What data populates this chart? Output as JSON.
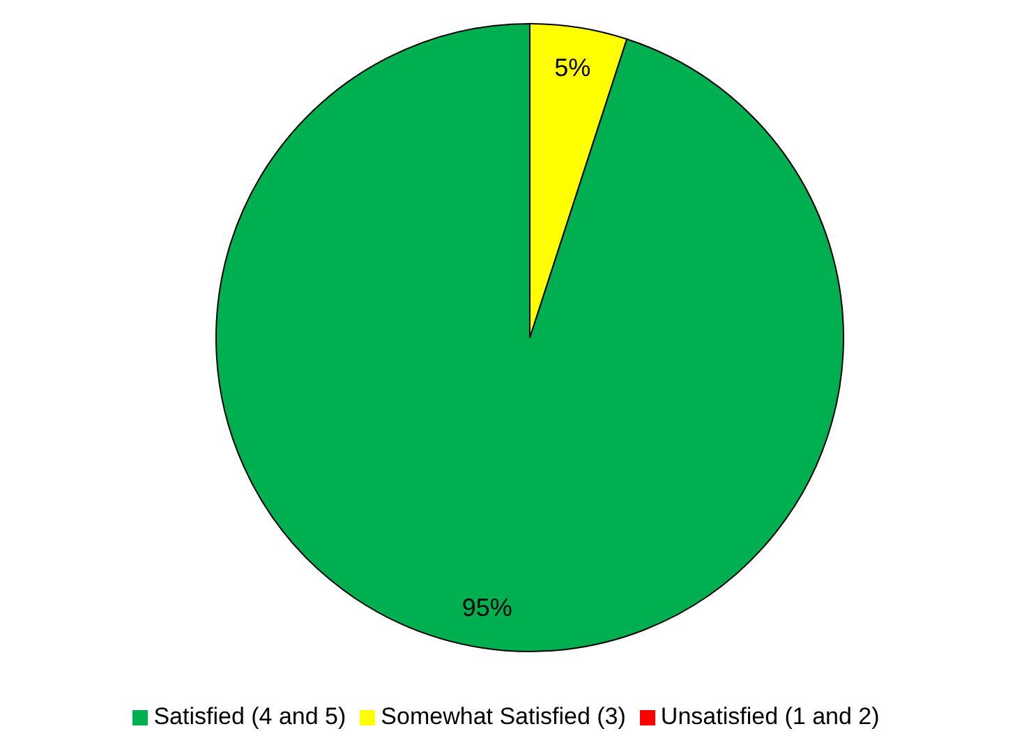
{
  "chart_data": {
    "type": "pie",
    "categories": [
      "Satisfied (4 and 5)",
      "Somewhat Satisfied (3)",
      "Unsatisfied (1 and 2)"
    ],
    "values": [
      95,
      5,
      0
    ],
    "colors": [
      "#00b050",
      "#ffff00",
      "#ff0000"
    ],
    "value_labels": [
      "95%",
      "5%",
      null
    ],
    "legend": "bottom"
  }
}
